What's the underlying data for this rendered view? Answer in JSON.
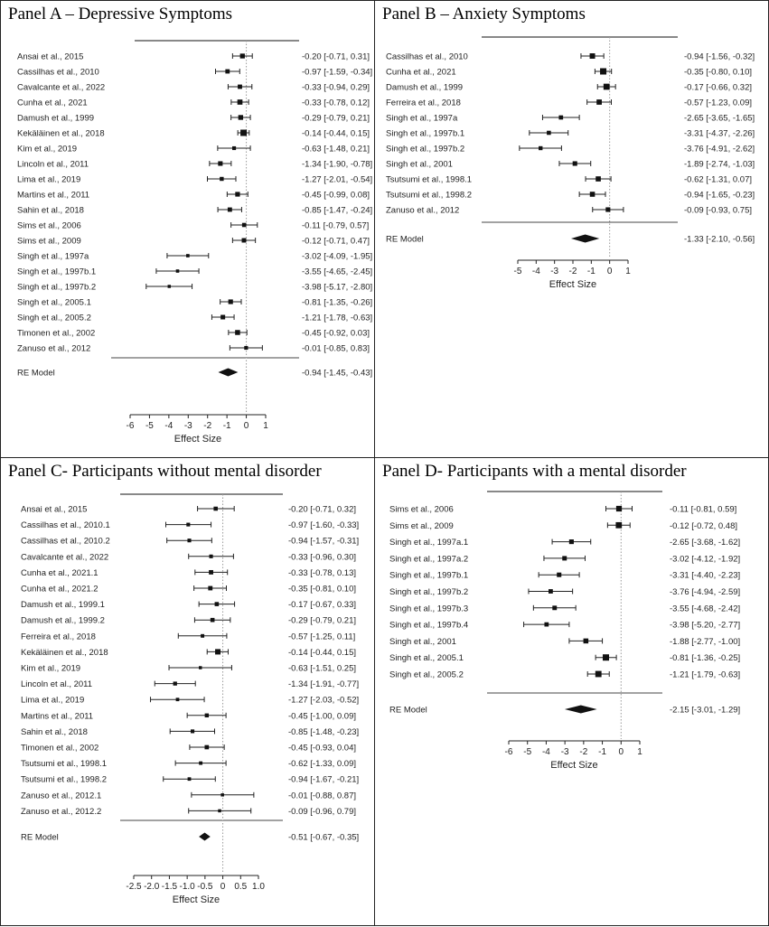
{
  "chart_data": [
    {
      "type": "forest",
      "panel": "A",
      "title": "Panel A – Depressive Symptoms",
      "xlabel": "Effect Size",
      "xlim": [
        -6,
        1
      ],
      "xticks": [
        -6,
        -5,
        -4,
        -3,
        -2,
        -1,
        0,
        1
      ],
      "studies": [
        {
          "study": "Ansai et al., 2015",
          "estimate": -0.2,
          "lower": -0.71,
          "upper": 0.31,
          "ci_text": "-0.20 [-0.71, 0.31]"
        },
        {
          "study": "Cassilhas et al., 2010",
          "estimate": -0.97,
          "lower": -1.59,
          "upper": -0.34,
          "ci_text": "-0.97 [-1.59, -0.34]"
        },
        {
          "study": "Cavalcante et al., 2022",
          "estimate": -0.33,
          "lower": -0.94,
          "upper": 0.29,
          "ci_text": "-0.33 [-0.94, 0.29]"
        },
        {
          "study": "Cunha et al., 2021",
          "estimate": -0.33,
          "lower": -0.78,
          "upper": 0.12,
          "ci_text": "-0.33 [-0.78, 0.12]"
        },
        {
          "study": "Damush et al., 1999",
          "estimate": -0.29,
          "lower": -0.79,
          "upper": 0.21,
          "ci_text": "-0.29 [-0.79, 0.21]"
        },
        {
          "study": "Kekäläinen et al., 2018",
          "estimate": -0.14,
          "lower": -0.44,
          "upper": 0.15,
          "ci_text": "-0.14 [-0.44, 0.15]"
        },
        {
          "study": "Kim et al., 2019",
          "estimate": -0.63,
          "lower": -1.48,
          "upper": 0.21,
          "ci_text": "-0.63 [-1.48, 0.21]"
        },
        {
          "study": "Lincoln et al., 2011",
          "estimate": -1.34,
          "lower": -1.9,
          "upper": -0.78,
          "ci_text": "-1.34 [-1.90, -0.78]"
        },
        {
          "study": "Lima et al., 2019",
          "estimate": -1.27,
          "lower": -2.01,
          "upper": -0.54,
          "ci_text": "-1.27 [-2.01, -0.54]"
        },
        {
          "study": "Martins et al., 2011",
          "estimate": -0.45,
          "lower": -0.99,
          "upper": 0.08,
          "ci_text": "-0.45 [-0.99, 0.08]"
        },
        {
          "study": "Sahin et al., 2018",
          "estimate": -0.85,
          "lower": -1.47,
          "upper": -0.24,
          "ci_text": "-0.85 [-1.47, -0.24]"
        },
        {
          "study": "Sims et al., 2006",
          "estimate": -0.11,
          "lower": -0.79,
          "upper": 0.57,
          "ci_text": "-0.11 [-0.79, 0.57]"
        },
        {
          "study": "Sims et al., 2009",
          "estimate": -0.12,
          "lower": -0.71,
          "upper": 0.47,
          "ci_text": "-0.12 [-0.71, 0.47]"
        },
        {
          "study": "Singh et al., 1997a",
          "estimate": -3.02,
          "lower": -4.09,
          "upper": -1.95,
          "ci_text": "-3.02 [-4.09, -1.95]"
        },
        {
          "study": "Singh et al., 1997b.1",
          "estimate": -3.55,
          "lower": -4.65,
          "upper": -2.45,
          "ci_text": "-3.55 [-4.65, -2.45]"
        },
        {
          "study": "Singh et al., 1997b.2",
          "estimate": -3.98,
          "lower": -5.17,
          "upper": -2.8,
          "ci_text": "-3.98 [-5.17, -2.80]"
        },
        {
          "study": "Singh et al., 2005.1",
          "estimate": -0.81,
          "lower": -1.35,
          "upper": -0.26,
          "ci_text": "-0.81 [-1.35, -0.26]"
        },
        {
          "study": "Singh et al., 2005.2",
          "estimate": -1.21,
          "lower": -1.78,
          "upper": -0.63,
          "ci_text": "-1.21 [-1.78, -0.63]"
        },
        {
          "study": "Timonen et al., 2002",
          "estimate": -0.45,
          "lower": -0.92,
          "upper": 0.03,
          "ci_text": "-0.45 [-0.92, 0.03]"
        },
        {
          "study": "Zanuso et al., 2012",
          "estimate": -0.01,
          "lower": -0.85,
          "upper": 0.83,
          "ci_text": "-0.01 [-0.85, 0.83]"
        }
      ],
      "pooled": {
        "label": "RE Model",
        "estimate": -0.94,
        "lower": -1.45,
        "upper": -0.43,
        "ci_text": "-0.94 [-1.45, -0.43]"
      }
    },
    {
      "type": "forest",
      "panel": "B",
      "title": "Panel B – Anxiety Symptoms",
      "xlabel": "Effect Size",
      "xlim": [
        -5,
        1
      ],
      "xticks": [
        -5,
        -4,
        -3,
        -2,
        -1,
        0,
        1
      ],
      "studies": [
        {
          "study": "Cassilhas et al., 2010",
          "estimate": -0.94,
          "lower": -1.56,
          "upper": -0.32,
          "ci_text": "-0.94 [-1.56, -0.32]"
        },
        {
          "study": "Cunha et al., 2021",
          "estimate": -0.35,
          "lower": -0.8,
          "upper": 0.1,
          "ci_text": "-0.35 [-0.80, 0.10]"
        },
        {
          "study": "Damush et al., 1999",
          "estimate": -0.17,
          "lower": -0.66,
          "upper": 0.32,
          "ci_text": "-0.17 [-0.66, 0.32]"
        },
        {
          "study": "Ferreira et al., 2018",
          "estimate": -0.57,
          "lower": -1.23,
          "upper": 0.09,
          "ci_text": "-0.57 [-1.23, 0.09]"
        },
        {
          "study": "Singh et al., 1997a",
          "estimate": -2.65,
          "lower": -3.65,
          "upper": -1.65,
          "ci_text": "-2.65 [-3.65, -1.65]"
        },
        {
          "study": "Singh et al., 1997b.1",
          "estimate": -3.31,
          "lower": -4.37,
          "upper": -2.26,
          "ci_text": "-3.31 [-4.37, -2.26]"
        },
        {
          "study": "Singh et al., 1997b.2",
          "estimate": -3.76,
          "lower": -4.91,
          "upper": -2.62,
          "ci_text": "-3.76 [-4.91, -2.62]"
        },
        {
          "study": "Singh et al., 2001",
          "estimate": -1.89,
          "lower": -2.74,
          "upper": -1.03,
          "ci_text": "-1.89 [-2.74, -1.03]"
        },
        {
          "study": "Tsutsumi et al., 1998.1",
          "estimate": -0.62,
          "lower": -1.31,
          "upper": 0.07,
          "ci_text": "-0.62 [-1.31, 0.07]"
        },
        {
          "study": "Tsutsumi et al., 1998.2",
          "estimate": -0.94,
          "lower": -1.65,
          "upper": -0.23,
          "ci_text": "-0.94 [-1.65, -0.23]"
        },
        {
          "study": "Zanuso et al., 2012",
          "estimate": -0.09,
          "lower": -0.93,
          "upper": 0.75,
          "ci_text": "-0.09 [-0.93, 0.75]"
        }
      ],
      "pooled": {
        "label": "RE Model",
        "estimate": -1.33,
        "lower": -2.1,
        "upper": -0.56,
        "ci_text": "-1.33 [-2.10, -0.56]"
      }
    },
    {
      "type": "forest",
      "panel": "C",
      "title": "Panel C- Participants without mental disorder",
      "xlabel": "Effect Size",
      "xlim": [
        -2.5,
        1.0
      ],
      "xticks": [
        -2.5,
        -2.0,
        -1.5,
        -1.0,
        -0.5,
        0,
        0.5,
        1.0
      ],
      "xtick_labels": [
        "-2.5",
        "-2.0",
        "-1.5",
        "-1.0",
        "-0.5",
        "0",
        "0.5",
        "1.0"
      ],
      "studies": [
        {
          "study": "Ansai et al., 2015",
          "estimate": -0.2,
          "lower": -0.71,
          "upper": 0.32,
          "ci_text": "-0.20 [-0.71, 0.32]"
        },
        {
          "study": "Cassilhas et al., 2010.1",
          "estimate": -0.97,
          "lower": -1.6,
          "upper": -0.33,
          "ci_text": "-0.97 [-1.60, -0.33]"
        },
        {
          "study": "Cassilhas et al., 2010.2",
          "estimate": -0.94,
          "lower": -1.57,
          "upper": -0.31,
          "ci_text": "-0.94 [-1.57, -0.31]"
        },
        {
          "study": "Cavalcante et al., 2022",
          "estimate": -0.33,
          "lower": -0.96,
          "upper": 0.3,
          "ci_text": "-0.33 [-0.96, 0.30]"
        },
        {
          "study": "Cunha et al., 2021.1",
          "estimate": -0.33,
          "lower": -0.78,
          "upper": 0.13,
          "ci_text": "-0.33 [-0.78, 0.13]"
        },
        {
          "study": "Cunha et al., 2021.2",
          "estimate": -0.35,
          "lower": -0.81,
          "upper": 0.1,
          "ci_text": "-0.35 [-0.81, 0.10]"
        },
        {
          "study": "Damush et al., 1999.1",
          "estimate": -0.17,
          "lower": -0.67,
          "upper": 0.33,
          "ci_text": "-0.17 [-0.67, 0.33]"
        },
        {
          "study": "Damush et al., 1999.2",
          "estimate": -0.29,
          "lower": -0.79,
          "upper": 0.21,
          "ci_text": "-0.29 [-0.79, 0.21]"
        },
        {
          "study": "Ferreira et al., 2018",
          "estimate": -0.57,
          "lower": -1.25,
          "upper": 0.11,
          "ci_text": "-0.57 [-1.25, 0.11]"
        },
        {
          "study": "Kekäläinen et al., 2018",
          "estimate": -0.14,
          "lower": -0.44,
          "upper": 0.15,
          "ci_text": "-0.14 [-0.44, 0.15]"
        },
        {
          "study": "Kim et al., 2019",
          "estimate": -0.63,
          "lower": -1.51,
          "upper": 0.25,
          "ci_text": "-0.63 [-1.51, 0.25]"
        },
        {
          "study": "Lincoln et al., 2011",
          "estimate": -1.34,
          "lower": -1.91,
          "upper": -0.77,
          "ci_text": "-1.34 [-1.91, -0.77]"
        },
        {
          "study": "Lima et al., 2019",
          "estimate": -1.27,
          "lower": -2.03,
          "upper": -0.52,
          "ci_text": "-1.27 [-2.03, -0.52]"
        },
        {
          "study": "Martins et al., 2011",
          "estimate": -0.45,
          "lower": -1.0,
          "upper": 0.09,
          "ci_text": "-0.45 [-1.00, 0.09]"
        },
        {
          "study": "Sahin et al., 2018",
          "estimate": -0.85,
          "lower": -1.48,
          "upper": -0.23,
          "ci_text": "-0.85 [-1.48, -0.23]"
        },
        {
          "study": "Timonen et al., 2002",
          "estimate": -0.45,
          "lower": -0.93,
          "upper": 0.04,
          "ci_text": "-0.45 [-0.93, 0.04]"
        },
        {
          "study": "Tsutsumi et al., 1998.1",
          "estimate": -0.62,
          "lower": -1.33,
          "upper": 0.09,
          "ci_text": "-0.62 [-1.33, 0.09]"
        },
        {
          "study": "Tsutsumi et al., 1998.2",
          "estimate": -0.94,
          "lower": -1.67,
          "upper": -0.21,
          "ci_text": "-0.94 [-1.67, -0.21]"
        },
        {
          "study": "Zanuso et al., 2012.1",
          "estimate": -0.01,
          "lower": -0.88,
          "upper": 0.87,
          "ci_text": "-0.01 [-0.88, 0.87]"
        },
        {
          "study": "Zanuso et al., 2012.2",
          "estimate": -0.09,
          "lower": -0.96,
          "upper": 0.79,
          "ci_text": "-0.09 [-0.96, 0.79]"
        }
      ],
      "pooled": {
        "label": "RE Model",
        "estimate": -0.51,
        "lower": -0.67,
        "upper": -0.35,
        "ci_text": "-0.51 [-0.67, -0.35]"
      }
    },
    {
      "type": "forest",
      "panel": "D",
      "title": "Panel D- Participants with a mental disorder",
      "xlabel": "Effect Size",
      "xlim": [
        -6,
        1
      ],
      "xticks": [
        -6,
        -5,
        -4,
        -3,
        -2,
        -1,
        0,
        1
      ],
      "studies": [
        {
          "study": "Sims et al., 2006",
          "estimate": -0.11,
          "lower": -0.81,
          "upper": 0.59,
          "ci_text": "-0.11 [-0.81, 0.59]"
        },
        {
          "study": "Sims et al., 2009",
          "estimate": -0.12,
          "lower": -0.72,
          "upper": 0.48,
          "ci_text": "-0.12 [-0.72, 0.48]"
        },
        {
          "study": "Singh et al., 1997a.1",
          "estimate": -2.65,
          "lower": -3.68,
          "upper": -1.62,
          "ci_text": "-2.65 [-3.68, -1.62]"
        },
        {
          "study": "Singh et al., 1997a.2",
          "estimate": -3.02,
          "lower": -4.12,
          "upper": -1.92,
          "ci_text": "-3.02 [-4.12, -1.92]"
        },
        {
          "study": "Singh et al., 1997b.1",
          "estimate": -3.31,
          "lower": -4.4,
          "upper": -2.23,
          "ci_text": "-3.31 [-4.40, -2.23]"
        },
        {
          "study": "Singh et al., 1997b.2",
          "estimate": -3.76,
          "lower": -4.94,
          "upper": -2.59,
          "ci_text": "-3.76 [-4.94, -2.59]"
        },
        {
          "study": "Singh et al., 1997b.3",
          "estimate": -3.55,
          "lower": -4.68,
          "upper": -2.42,
          "ci_text": "-3.55 [-4.68, -2.42]"
        },
        {
          "study": "Singh et al., 1997b.4",
          "estimate": -3.98,
          "lower": -5.2,
          "upper": -2.77,
          "ci_text": "-3.98 [-5.20, -2.77]"
        },
        {
          "study": "Singh et al., 2001",
          "estimate": -1.88,
          "lower": -2.77,
          "upper": -1.0,
          "ci_text": "-1.88 [-2.77, -1.00]"
        },
        {
          "study": "Singh et al., 2005.1",
          "estimate": -0.81,
          "lower": -1.36,
          "upper": -0.25,
          "ci_text": "-0.81 [-1.36, -0.25]"
        },
        {
          "study": "Singh et al., 2005.2",
          "estimate": -1.21,
          "lower": -1.79,
          "upper": -0.63,
          "ci_text": "-1.21 [-1.79, -0.63]"
        }
      ],
      "pooled": {
        "label": "RE Model",
        "estimate": -2.15,
        "lower": -3.01,
        "upper": -1.29,
        "ci_text": "-2.15 [-3.01, -1.29]"
      }
    }
  ]
}
